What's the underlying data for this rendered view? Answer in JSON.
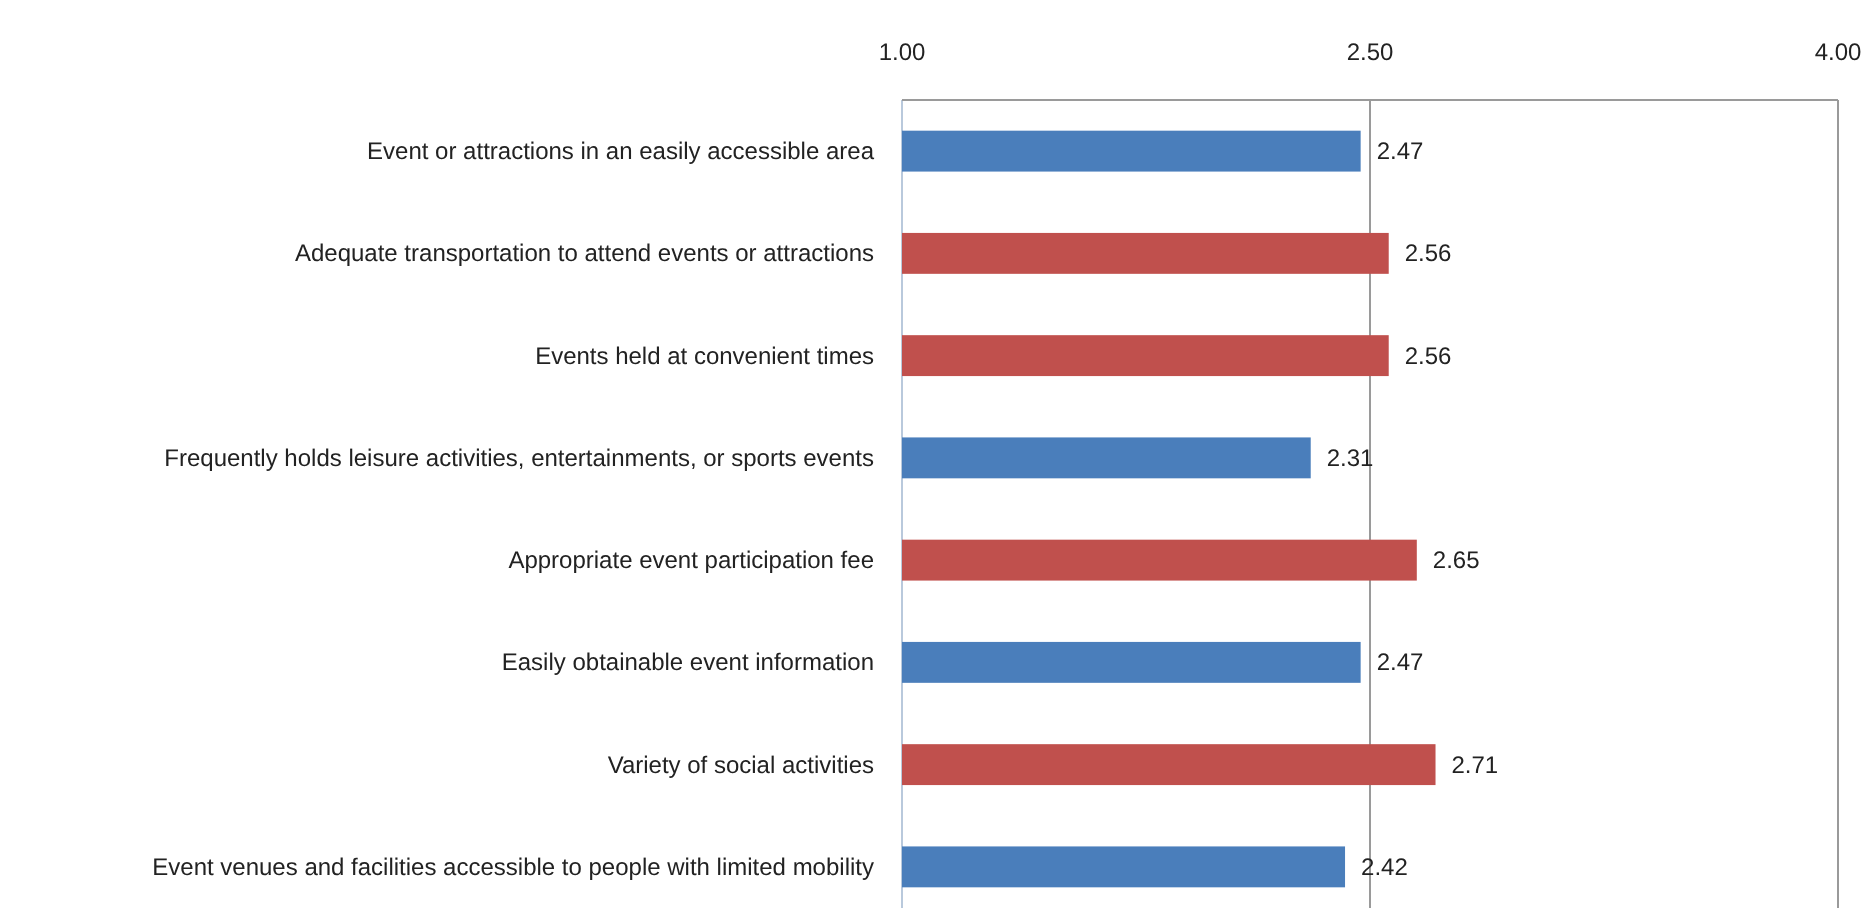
{
  "chart_data": {
    "type": "bar",
    "orientation": "horizontal",
    "categories": [
      "Event or attractions in an easily accessible area",
      "Adequate transportation to attend events or attractions",
      "Events held at convenient times",
      "Frequently holds leisure activities, entertainments, or sports events",
      "Appropriate event participation fee",
      "Easily obtainable event information",
      "Variety of social activities",
      "Event venues and facilities accessible to people with limited mobility"
    ],
    "values": [
      2.47,
      2.56,
      2.56,
      2.31,
      2.65,
      2.47,
      2.71,
      2.42
    ],
    "colors": [
      "#4a7ebb",
      "#c0504d",
      "#c0504d",
      "#4a7ebb",
      "#c0504d",
      "#4a7ebb",
      "#c0504d",
      "#4a7ebb"
    ],
    "xlim": [
      1,
      4
    ],
    "xticks": [
      {
        "value": 1,
        "label": "1.00"
      },
      {
        "value": 2.5,
        "label": "2.50"
      },
      {
        "value": 4,
        "label": "4.00"
      }
    ],
    "grid": "x",
    "data_labels": true
  }
}
